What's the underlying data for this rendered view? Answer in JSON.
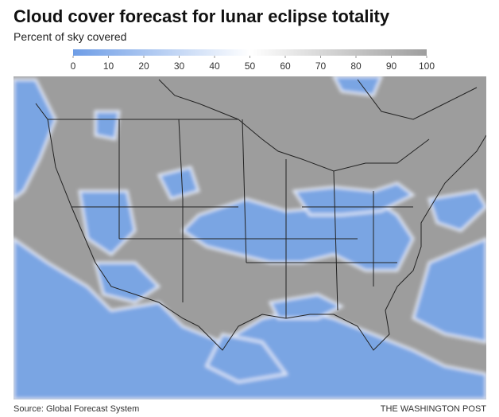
{
  "header": {
    "title": "Cloud cover forecast for lunar eclipse totality",
    "subtitle": "Percent of sky covered"
  },
  "legend": {
    "lim": [
      0,
      100
    ],
    "ticks": [
      0,
      10,
      20,
      30,
      40,
      50,
      60,
      70,
      80,
      90,
      100
    ],
    "colors": [
      "#6e9de6",
      "#ffffff",
      "#9e9e9e"
    ]
  },
  "footer": {
    "source": "Source: Global Forecast System",
    "credit": "THE WASHINGTON POST"
  }
}
